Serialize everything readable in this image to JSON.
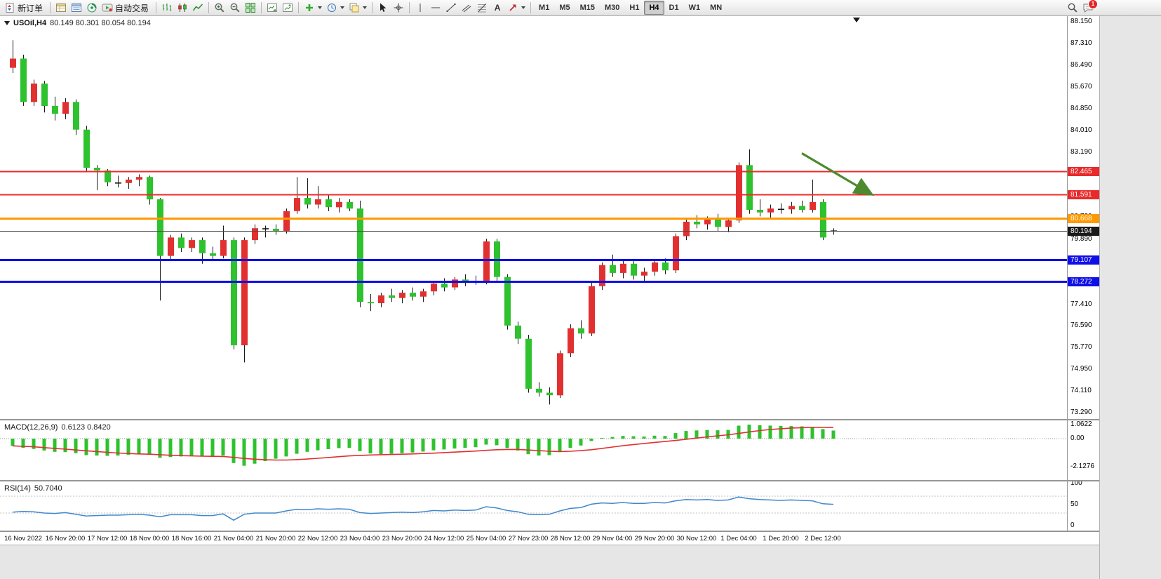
{
  "toolbar": {
    "new_order_label": "新订单",
    "auto_trading_label": "自动交易",
    "text_tool_label": "A",
    "timeframes": [
      "M1",
      "M5",
      "M15",
      "M30",
      "H1",
      "H4",
      "D1",
      "W1",
      "MN"
    ],
    "active_timeframe": "H4",
    "chat_badge_count": "1"
  },
  "chart_data": [
    {
      "type": "candlestick",
      "title": "USOil,H4",
      "ohlc_label": "80.149 80.301 80.054 80.194",
      "up_color": "#e23030",
      "down_color": "#2ec22e",
      "wick_color": "#1a1a1a",
      "y_axis_labels": [
        "88.150",
        "87.310",
        "86.490",
        "85.670",
        "84.850",
        "84.010",
        "83.190",
        "82.370",
        "81.550",
        "80.730",
        "79.890",
        "79.070",
        "78.250",
        "77.410",
        "76.590",
        "75.770",
        "74.950",
        "74.110",
        "73.290"
      ],
      "y_range": [
        73.29,
        88.15
      ],
      "x_labels": [
        "16 Nov 2022",
        "16 Nov 20:00",
        "17 Nov 12:00",
        "18 Nov 00:00",
        "18 Nov 16:00",
        "21 Nov 04:00",
        "21 Nov 20:00",
        "22 Nov 12:00",
        "23 Nov 04:00",
        "23 Nov 20:00",
        "24 Nov 12:00",
        "25 Nov 04:00",
        "27 Nov 23:00",
        "28 Nov 12:00",
        "29 Nov 04:00",
        "29 Nov 20:00",
        "30 Nov 12:00",
        "1 Dec 04:00",
        "1 Dec 20:00",
        "2 Dec 12:00"
      ],
      "x_label_every_n_bars": 4,
      "hlines": [
        {
          "price": 82.465,
          "label": "82.465",
          "color": "#ef2929",
          "badge_color": "#e82a2a",
          "width": 2
        },
        {
          "price": 81.591,
          "label": "81.591",
          "color": "#ef2929",
          "badge_color": "#e82a2a",
          "width": 2
        },
        {
          "price": 80.668,
          "label": "80.668",
          "color": "#ff9900",
          "badge_color": "#ff9900",
          "width": 3
        },
        {
          "price": 80.194,
          "label": "80.194",
          "color": "#4a4a4a",
          "badge_color": "#1a1a1a",
          "width": 1
        },
        {
          "price": 79.107,
          "label": "79.107",
          "color": "#0f0fe8",
          "badge_color": "#0f0fe8",
          "width": 3
        },
        {
          "price": 78.272,
          "label": "78.272",
          "color": "#0f0fe8",
          "badge_color": "#0f0fe8",
          "width": 3
        }
      ],
      "arrow_annotation": {
        "from_bar": 75,
        "from_price": 83.15,
        "to_bar": 81.5,
        "to_price": 81.62,
        "color": "#4c8a2f"
      },
      "candles": [
        [
          86.4,
          87.45,
          86.2,
          86.75
        ],
        [
          86.75,
          86.9,
          84.95,
          85.1
        ],
        [
          85.1,
          85.95,
          84.95,
          85.8
        ],
        [
          85.8,
          85.9,
          84.7,
          84.95
        ],
        [
          84.95,
          85.3,
          84.4,
          84.65
        ],
        [
          84.65,
          85.25,
          84.45,
          85.1
        ],
        [
          85.1,
          85.2,
          83.85,
          84.05
        ],
        [
          84.05,
          84.2,
          82.45,
          82.6
        ],
        [
          82.6,
          82.7,
          81.75,
          82.5
        ],
        [
          82.5,
          82.55,
          81.9,
          82.05
        ],
        [
          82.05,
          82.3,
          81.85,
          82.02
        ],
        [
          82.02,
          82.25,
          81.8,
          82.15
        ],
        [
          82.15,
          82.35,
          81.9,
          82.25
        ],
        [
          82.25,
          82.3,
          81.2,
          81.4
        ],
        [
          81.4,
          81.45,
          77.55,
          79.25
        ],
        [
          79.25,
          80.05,
          79.1,
          79.95
        ],
        [
          79.95,
          80.1,
          79.4,
          79.55
        ],
        [
          79.55,
          79.95,
          79.4,
          79.85
        ],
        [
          79.85,
          79.95,
          78.95,
          79.35
        ],
        [
          79.35,
          79.6,
          79.05,
          79.25
        ],
        [
          79.25,
          80.4,
          79.15,
          79.85
        ],
        [
          79.85,
          79.95,
          75.7,
          75.85
        ],
        [
          75.85,
          79.95,
          75.2,
          79.85
        ],
        [
          79.85,
          80.45,
          79.7,
          80.3
        ],
        [
          80.3,
          80.4,
          79.95,
          80.28
        ],
        [
          80.28,
          80.45,
          80.05,
          80.2
        ],
        [
          80.2,
          81.05,
          80.1,
          80.95
        ],
        [
          80.95,
          82.25,
          80.85,
          81.45
        ],
        [
          81.45,
          82.2,
          81.05,
          81.2
        ],
        [
          81.2,
          81.9,
          81.05,
          81.4
        ],
        [
          81.4,
          81.55,
          80.95,
          81.1
        ],
        [
          81.1,
          81.45,
          80.9,
          81.3
        ],
        [
          81.3,
          81.4,
          80.95,
          81.05
        ],
        [
          81.05,
          81.35,
          77.3,
          77.5
        ],
        [
          77.5,
          77.8,
          77.15,
          77.45
        ],
        [
          77.45,
          77.85,
          77.3,
          77.75
        ],
        [
          77.75,
          78.0,
          77.5,
          77.65
        ],
        [
          77.65,
          77.95,
          77.45,
          77.85
        ],
        [
          77.85,
          78.05,
          77.55,
          77.7
        ],
        [
          77.7,
          78.0,
          77.5,
          77.9
        ],
        [
          77.9,
          78.3,
          77.75,
          78.2
        ],
        [
          78.2,
          78.4,
          77.9,
          78.05
        ],
        [
          78.05,
          78.45,
          77.95,
          78.35
        ],
        [
          78.35,
          78.55,
          78.1,
          78.25
        ],
        [
          78.25,
          78.5,
          78.15,
          78.27
        ],
        [
          78.27,
          79.9,
          78.17,
          79.8
        ],
        [
          79.8,
          79.9,
          78.3,
          78.45
        ],
        [
          78.45,
          78.55,
          76.45,
          76.6
        ],
        [
          76.6,
          76.75,
          75.9,
          76.1
        ],
        [
          76.1,
          76.25,
          74.05,
          74.2
        ],
        [
          74.2,
          74.45,
          73.9,
          74.05
        ],
        [
          74.05,
          74.25,
          73.6,
          73.95
        ],
        [
          73.95,
          75.65,
          73.85,
          75.55
        ],
        [
          75.55,
          76.65,
          75.4,
          76.5
        ],
        [
          76.5,
          76.8,
          76.1,
          76.3
        ],
        [
          76.3,
          78.25,
          76.2,
          78.1
        ],
        [
          78.1,
          79.0,
          77.95,
          78.9
        ],
        [
          78.9,
          79.3,
          78.45,
          78.6
        ],
        [
          78.6,
          79.1,
          78.4,
          78.95
        ],
        [
          78.95,
          79.05,
          78.35,
          78.5
        ],
        [
          78.5,
          78.8,
          78.25,
          78.65
        ],
        [
          78.65,
          79.1,
          78.5,
          79.0
        ],
        [
          79.0,
          79.15,
          78.55,
          78.7
        ],
        [
          78.7,
          80.1,
          78.6,
          80.0
        ],
        [
          80.0,
          80.65,
          79.85,
          80.55
        ],
        [
          80.55,
          80.8,
          80.3,
          80.45
        ],
        [
          80.45,
          80.75,
          80.25,
          80.65
        ],
        [
          80.65,
          80.85,
          80.2,
          80.35
        ],
        [
          80.35,
          80.7,
          80.15,
          80.6
        ],
        [
          80.6,
          82.8,
          80.5,
          82.7
        ],
        [
          82.7,
          83.3,
          80.85,
          81.0
        ],
        [
          81.0,
          81.4,
          80.75,
          80.9
        ],
        [
          80.9,
          81.2,
          80.7,
          81.05
        ],
        [
          81.05,
          81.25,
          80.85,
          81.02
        ],
        [
          81.02,
          81.3,
          80.85,
          81.15
        ],
        [
          81.15,
          81.35,
          80.9,
          81.0
        ],
        [
          81.0,
          82.15,
          80.9,
          81.3
        ],
        [
          81.3,
          81.4,
          79.85,
          79.95
        ],
        [
          80.149,
          80.301,
          80.054,
          80.194
        ]
      ]
    },
    {
      "type": "bar",
      "title": "MACD(12,26,9)",
      "values_label": "0.6123 0.8420",
      "axis_labels": [
        "1.0622",
        "0.00",
        "-2.1276"
      ],
      "histogram_color": "#2ec22e",
      "signal_color": "#e03030",
      "histogram": [
        -0.55,
        -0.7,
        -0.78,
        -0.9,
        -1.0,
        -1.02,
        -1.1,
        -1.25,
        -1.28,
        -1.3,
        -1.28,
        -1.22,
        -1.15,
        -1.2,
        -1.45,
        -1.38,
        -1.35,
        -1.28,
        -1.32,
        -1.35,
        -1.28,
        -1.85,
        -2.05,
        -1.9,
        -1.7,
        -1.52,
        -1.35,
        -1.15,
        -1.0,
        -0.88,
        -0.8,
        -0.72,
        -0.7,
        -0.95,
        -1.12,
        -1.18,
        -1.15,
        -1.1,
        -1.05,
        -0.98,
        -0.88,
        -0.82,
        -0.75,
        -0.7,
        -0.65,
        -0.45,
        -0.5,
        -0.72,
        -0.9,
        -1.18,
        -1.28,
        -1.25,
        -1.0,
        -0.7,
        -0.52,
        -0.18,
        0.05,
        0.12,
        0.2,
        0.18,
        0.16,
        0.22,
        0.2,
        0.42,
        0.58,
        0.62,
        0.66,
        0.63,
        0.66,
        0.98,
        1.06,
        1.02,
        0.99,
        0.96,
        0.95,
        0.93,
        0.9,
        0.72,
        0.6123
      ],
      "signal": [
        -0.55,
        -0.58,
        -0.62,
        -0.68,
        -0.74,
        -0.8,
        -0.86,
        -0.92,
        -0.98,
        -1.04,
        -1.09,
        -1.13,
        -1.16,
        -1.18,
        -1.22,
        -1.26,
        -1.29,
        -1.31,
        -1.33,
        -1.34,
        -1.35,
        -1.42,
        -1.5,
        -1.56,
        -1.6,
        -1.62,
        -1.62,
        -1.59,
        -1.55,
        -1.49,
        -1.43,
        -1.37,
        -1.31,
        -1.27,
        -1.24,
        -1.22,
        -1.2,
        -1.18,
        -1.16,
        -1.13,
        -1.1,
        -1.06,
        -1.02,
        -0.98,
        -0.94,
        -0.89,
        -0.84,
        -0.82,
        -0.82,
        -0.86,
        -0.91,
        -0.96,
        -0.98,
        -0.96,
        -0.91,
        -0.84,
        -0.74,
        -0.64,
        -0.54,
        -0.45,
        -0.37,
        -0.29,
        -0.22,
        -0.14,
        -0.05,
        0.04,
        0.13,
        0.21,
        0.29,
        0.39,
        0.51,
        0.61,
        0.69,
        0.75,
        0.8,
        0.83,
        0.85,
        0.85,
        0.842
      ]
    },
    {
      "type": "line",
      "title": "RSI(14)",
      "value_label": "50.7040",
      "axis_labels": [
        "100",
        "50",
        "0"
      ],
      "line_color": "#4187cc",
      "levels": [
        70,
        30
      ],
      "values": [
        32,
        34,
        33,
        30,
        29,
        31,
        27,
        23,
        24,
        25,
        25,
        26,
        27,
        25,
        21,
        26,
        26,
        26,
        24,
        24,
        28,
        13,
        27,
        30,
        30,
        30,
        35,
        39,
        38,
        40,
        39,
        40,
        39,
        31,
        29,
        30,
        31,
        32,
        31,
        33,
        36,
        35,
        37,
        36,
        37,
        45,
        42,
        36,
        33,
        27,
        26,
        27,
        35,
        41,
        43,
        51,
        54,
        53,
        55,
        53,
        53,
        55,
        54,
        59,
        62,
        61,
        62,
        60,
        61,
        68,
        64,
        62,
        61,
        60,
        61,
        60,
        59,
        52,
        50.7
      ]
    }
  ]
}
